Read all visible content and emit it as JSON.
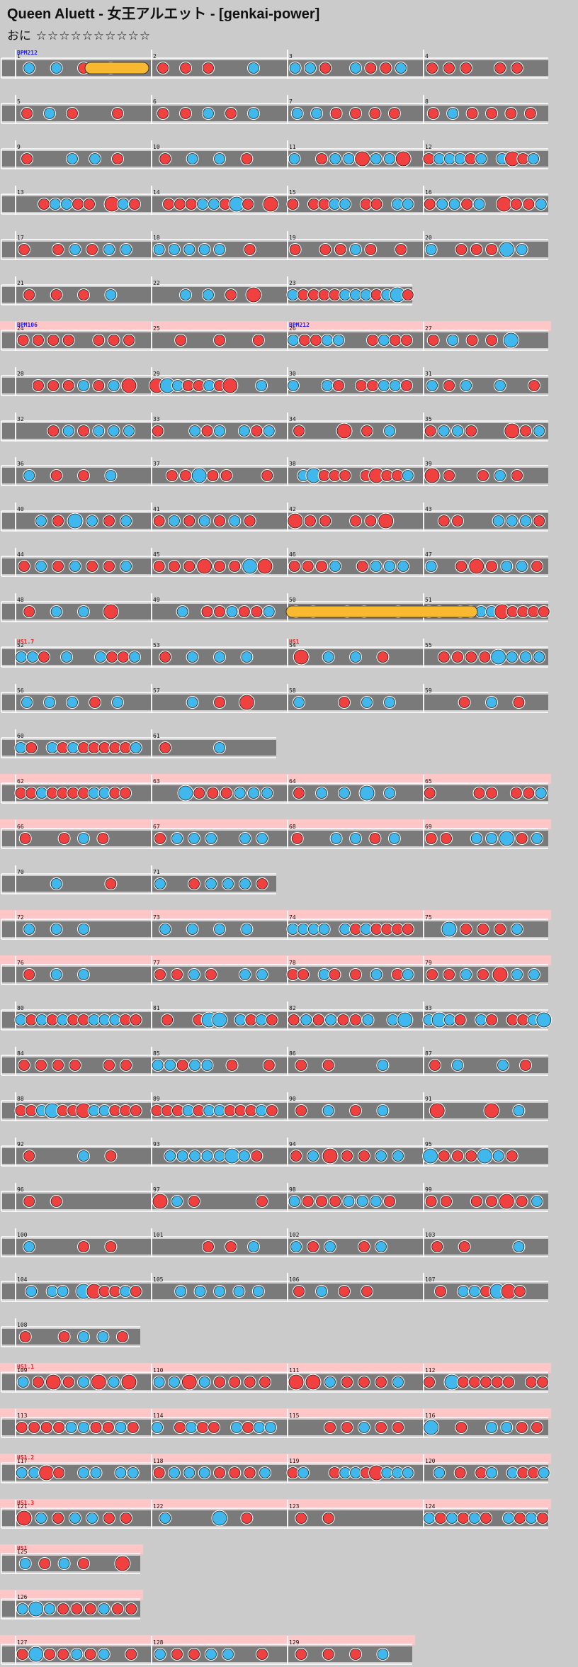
{
  "header": {
    "title": "Queen Aluett - 女王アルエット - [genkai-power]",
    "difficulty_label": "おに",
    "stars": "☆☆☆☆☆☆☆☆☆☆"
  },
  "colors": {
    "background": "#cbcbcb",
    "lane": "#7a7a7a",
    "don": "#f04040",
    "ka": "#40b8ee",
    "drumroll": "#f8b830",
    "gogo": "#ffc6c8",
    "bpm_text": "#2020ee",
    "scroll_text": "#e02020"
  },
  "chart_data": {
    "type": "taiko-chart-score",
    "rows": [
      {
        "measures": [
          1,
          2,
          3,
          4
        ],
        "gogo": false,
        "events": [
          {
            "text": "BPM212",
            "kind": "bpm"
          }
        ]
      },
      {
        "measures": [
          5,
          6,
          7,
          8
        ],
        "gogo": false,
        "events": []
      },
      {
        "measures": [
          9,
          10,
          11,
          12
        ],
        "gogo": false,
        "events": []
      },
      {
        "measures": [
          13,
          14,
          15,
          16
        ],
        "gogo": false,
        "events": []
      },
      {
        "measures": [
          17,
          18,
          19,
          20
        ],
        "gogo": false,
        "events": []
      },
      {
        "measures": [
          21,
          22,
          23
        ],
        "gogo": false,
        "events": []
      },
      {
        "measures": [
          24,
          25,
          26,
          27
        ],
        "gogo": true,
        "events": [
          {
            "text": "BPM106",
            "kind": "bpm"
          },
          {
            "text": "BPM212",
            "kind": "bpm"
          }
        ]
      },
      {
        "measures": [
          28,
          29,
          30,
          31
        ],
        "gogo": false,
        "events": []
      },
      {
        "measures": [
          32,
          33,
          34,
          35
        ],
        "gogo": false,
        "events": []
      },
      {
        "measures": [
          36,
          37,
          38,
          39
        ],
        "gogo": false,
        "events": []
      },
      {
        "measures": [
          40,
          41,
          42,
          43
        ],
        "gogo": false,
        "events": []
      },
      {
        "measures": [
          44,
          45,
          46,
          47
        ],
        "gogo": false,
        "events": []
      },
      {
        "measures": [
          48,
          49,
          50,
          51
        ],
        "gogo": false,
        "events": []
      },
      {
        "measures": [
          52,
          53,
          54,
          55
        ],
        "gogo": false,
        "events": [
          {
            "text": "HS1.7",
            "kind": "scroll"
          },
          {
            "text": "HS1",
            "kind": "scroll"
          }
        ]
      },
      {
        "measures": [
          56,
          57,
          58,
          59
        ],
        "gogo": false,
        "events": []
      },
      {
        "measures": [
          60,
          61
        ],
        "gogo": false,
        "events": []
      },
      {
        "measures": [
          62,
          63,
          64,
          65
        ],
        "gogo": true,
        "events": []
      },
      {
        "measures": [
          66,
          67,
          68,
          69
        ],
        "gogo": true,
        "events": []
      },
      {
        "measures": [
          70,
          71
        ],
        "gogo": false,
        "events": []
      },
      {
        "measures": [
          72,
          73,
          74,
          75
        ],
        "gogo": true,
        "events": []
      },
      {
        "measures": [
          76,
          77,
          78,
          79
        ],
        "gogo": true,
        "events": []
      },
      {
        "measures": [
          80,
          81,
          82,
          83
        ],
        "gogo": false,
        "events": []
      },
      {
        "measures": [
          84,
          85,
          86,
          87
        ],
        "gogo": false,
        "events": []
      },
      {
        "measures": [
          88,
          89,
          90,
          91
        ],
        "gogo": false,
        "events": []
      },
      {
        "measures": [
          92,
          93,
          94,
          95
        ],
        "gogo": false,
        "events": []
      },
      {
        "measures": [
          96,
          97,
          98,
          99
        ],
        "gogo": false,
        "events": []
      },
      {
        "measures": [
          100,
          101,
          102,
          103
        ],
        "gogo": false,
        "events": []
      },
      {
        "measures": [
          104,
          105,
          106,
          107
        ],
        "gogo": false,
        "events": []
      },
      {
        "measures": [
          108
        ],
        "gogo": false,
        "events": []
      },
      {
        "measures": [
          109,
          110,
          111,
          112
        ],
        "gogo": true,
        "events": [
          {
            "text": "HS1.1",
            "kind": "scroll"
          }
        ]
      },
      {
        "measures": [
          113,
          114,
          115,
          116
        ],
        "gogo": true,
        "events": []
      },
      {
        "measures": [
          117,
          118,
          119,
          120
        ],
        "gogo": true,
        "events": [
          {
            "text": "HS1.2",
            "kind": "scroll"
          }
        ]
      },
      {
        "measures": [
          121,
          122,
          123,
          124
        ],
        "gogo": true,
        "events": [
          {
            "text": "HS1.3",
            "kind": "scroll"
          }
        ]
      },
      {
        "measures": [
          125
        ],
        "gogo": true,
        "events": [
          {
            "text": "HS1",
            "kind": "scroll"
          }
        ]
      },
      {
        "measures": [
          126
        ],
        "gogo": true,
        "events": []
      },
      {
        "measures": [
          127,
          128,
          129
        ],
        "gogo": true,
        "events": []
      }
    ]
  }
}
